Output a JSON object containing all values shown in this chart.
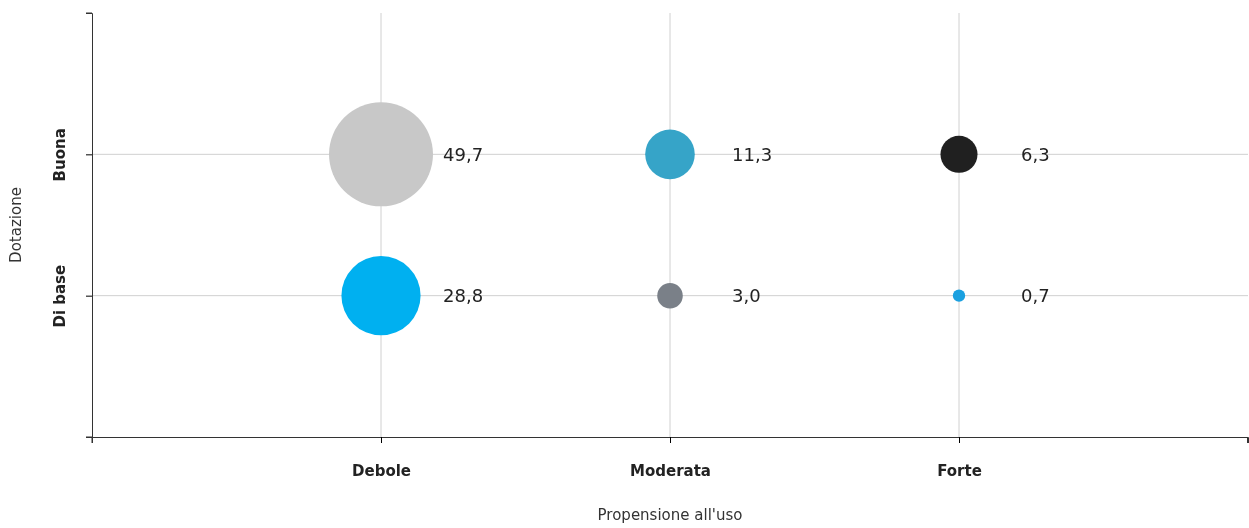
{
  "chart_data": {
    "type": "heatmap",
    "xlabel": "Propensione all'uso",
    "ylabel": "Dotazione",
    "categories": [
      "Debole",
      "Moderata",
      "Forte"
    ],
    "y_categories": [
      "Buona",
      "Di base"
    ],
    "grid": true,
    "cells": [
      [
        49.7,
        11.3,
        6.3
      ],
      [
        28.8,
        3.0,
        0.7
      ]
    ],
    "cell_labels": [
      [
        "49,7",
        "11,3",
        "6,3"
      ],
      [
        "28,8",
        "3,0",
        "0,7"
      ]
    ],
    "colors": [
      [
        "#c8c8c8",
        "#36a4c8",
        "#202020"
      ],
      [
        "#00b0f0",
        "#7a8088",
        "#1aa0e0"
      ]
    ]
  }
}
